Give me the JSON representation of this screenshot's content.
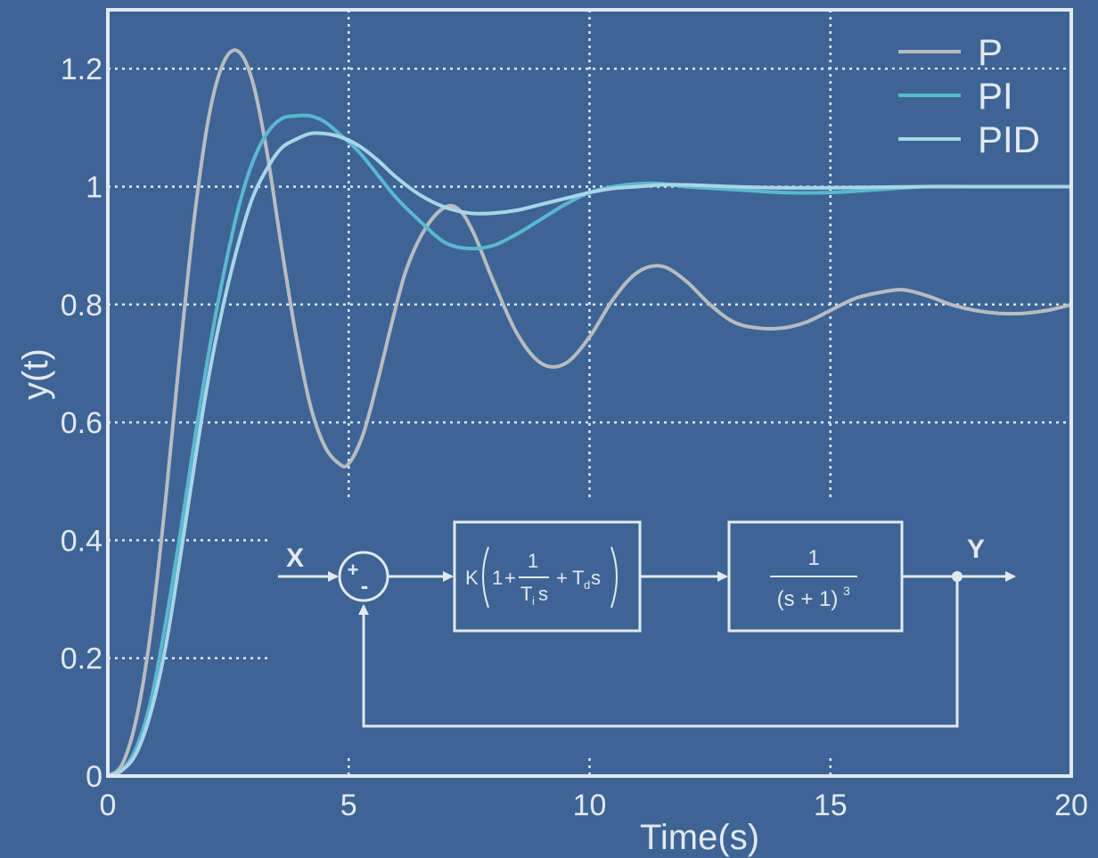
{
  "chart_data": {
    "type": "line",
    "xlabel": "Time(s)",
    "ylabel": "y(t)",
    "xlim": [
      0,
      20
    ],
    "ylim": [
      0,
      1.3
    ],
    "xticks": [
      0,
      5,
      10,
      15,
      20
    ],
    "yticks": [
      0,
      0.2,
      0.4,
      0.6,
      0.8,
      1,
      1.2
    ],
    "ytick_labels": [
      "0",
      "0.2",
      "0.4",
      "0.6",
      "0.8",
      "1",
      "1.2"
    ],
    "xtick_labels": [
      "0",
      "5",
      "10",
      "15",
      "20"
    ],
    "grid": true,
    "legend_position": "top-right",
    "series": [
      {
        "name": "P",
        "color": "#b8bcc0",
        "x": [
          0,
          0.3,
          0.6,
          0.9,
          1.2,
          1.5,
          1.8,
          2.1,
          2.4,
          2.7,
          3.0,
          3.3,
          3.6,
          3.9,
          4.2,
          4.5,
          4.8,
          5.0,
          5.3,
          5.6,
          5.9,
          6.2,
          6.6,
          7.0,
          7.3,
          7.6,
          8.0,
          8.5,
          9.0,
          9.5,
          10.0,
          10.5,
          11.0,
          11.5,
          12.0,
          12.5,
          13.0,
          13.5,
          14.0,
          14.5,
          15.0,
          15.5,
          16.0,
          16.5,
          17.0,
          17.5,
          18.0,
          18.5,
          19.0,
          19.5,
          20.0
        ],
        "values": [
          0,
          0.02,
          0.1,
          0.25,
          0.47,
          0.72,
          0.95,
          1.12,
          1.21,
          1.23,
          1.18,
          1.06,
          0.9,
          0.75,
          0.63,
          0.56,
          0.53,
          0.53,
          0.58,
          0.67,
          0.77,
          0.86,
          0.93,
          0.965,
          0.96,
          0.92,
          0.84,
          0.75,
          0.7,
          0.7,
          0.745,
          0.81,
          0.855,
          0.865,
          0.84,
          0.8,
          0.77,
          0.76,
          0.76,
          0.77,
          0.79,
          0.81,
          0.82,
          0.825,
          0.815,
          0.8,
          0.79,
          0.785,
          0.785,
          0.79,
          0.8
        ]
      },
      {
        "name": "PI",
        "color": "#5ab8d0",
        "x": [
          0,
          0.3,
          0.6,
          0.9,
          1.2,
          1.5,
          1.8,
          2.1,
          2.4,
          2.7,
          3.0,
          3.3,
          3.6,
          3.9,
          4.2,
          4.5,
          4.8,
          5.2,
          5.6,
          6.0,
          6.5,
          7.0,
          7.5,
          8.0,
          8.5,
          9.0,
          9.5,
          10.0,
          10.5,
          11.0,
          11.5,
          12.0,
          13.0,
          14.0,
          15.0,
          16.0,
          17.0,
          18.0,
          19.0,
          20.0
        ],
        "values": [
          0,
          0.01,
          0.05,
          0.13,
          0.26,
          0.41,
          0.57,
          0.72,
          0.85,
          0.96,
          1.04,
          1.09,
          1.115,
          1.12,
          1.12,
          1.11,
          1.09,
          1.06,
          1.02,
          0.98,
          0.94,
          0.905,
          0.895,
          0.9,
          0.92,
          0.945,
          0.97,
          0.99,
          1.0,
          1.005,
          1.005,
          1.0,
          0.995,
          0.99,
          0.99,
          0.995,
          1.0,
          1.0,
          1.0,
          1.0
        ]
      },
      {
        "name": "PID",
        "color": "#a8d6e8",
        "x": [
          0,
          0.3,
          0.6,
          0.9,
          1.2,
          1.5,
          1.8,
          2.1,
          2.4,
          2.7,
          3.0,
          3.3,
          3.6,
          3.9,
          4.2,
          4.5,
          4.8,
          5.2,
          5.6,
          6.0,
          6.5,
          7.0,
          7.5,
          8.0,
          8.5,
          9.0,
          9.5,
          10.0,
          10.5,
          11.0,
          11.5,
          12.0,
          13.0,
          14.0,
          15.0,
          16.0,
          17.0,
          18.0,
          19.0,
          20.0
        ],
        "values": [
          0,
          0.01,
          0.04,
          0.11,
          0.22,
          0.37,
          0.53,
          0.68,
          0.8,
          0.9,
          0.98,
          1.03,
          1.065,
          1.08,
          1.09,
          1.09,
          1.085,
          1.07,
          1.045,
          1.015,
          0.985,
          0.965,
          0.955,
          0.955,
          0.96,
          0.97,
          0.98,
          0.99,
          0.997,
          1.0,
          1.003,
          1.003,
          1.0,
          0.998,
          0.998,
          0.999,
          1.0,
          1.0,
          1.0,
          1.0
        ]
      }
    ]
  },
  "block_diagram": {
    "input_label": "X",
    "output_label": "Y",
    "sum_plus": "+",
    "sum_minus": "-",
    "controller": {
      "gain": "K",
      "one": "1",
      "plus1": "+",
      "frac_num": "1",
      "ti_base": "T",
      "ti_sub": "i",
      "ti_s": "s",
      "plus2": "+",
      "td_base": "T",
      "td_sub": "d",
      "td_s": "s"
    },
    "plant": {
      "numerator": "1",
      "denominator": "(s + 1)",
      "exponent": "3"
    }
  }
}
